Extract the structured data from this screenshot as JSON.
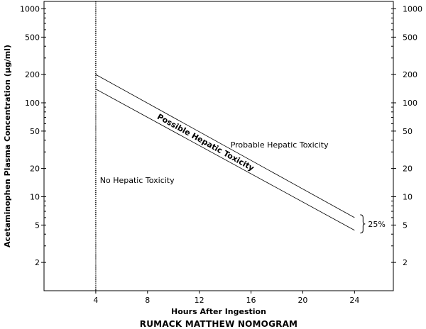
{
  "chart_data": {
    "type": "line",
    "title": "RUMACK MATTHEW NOMOGRAM",
    "xlabel": "Hours After Ingestion",
    "ylabel": "Acetaminophen Plasma Concentration (µg/ml)",
    "xlim": [
      0,
      27
    ],
    "ylim": [
      1,
      1200
    ],
    "yscale": "log",
    "x_ticks": [
      4,
      8,
      12,
      16,
      20,
      24
    ],
    "y_ticks": [
      2,
      5,
      10,
      20,
      50,
      100,
      200,
      500,
      1000
    ],
    "grid": false,
    "series": [
      {
        "x": [
          4,
          24
        ],
        "y": [
          200,
          6
        ]
      },
      {
        "x": [
          4,
          24
        ],
        "y": [
          140,
          4.4
        ]
      }
    ],
    "reference_line_x": 4,
    "annotations": {
      "probable": "Probable Hepatic Toxicity",
      "possible": "Possible Hepatic Toxicity",
      "none": "No Hepatic Toxicity",
      "band_width": "25%"
    }
  }
}
